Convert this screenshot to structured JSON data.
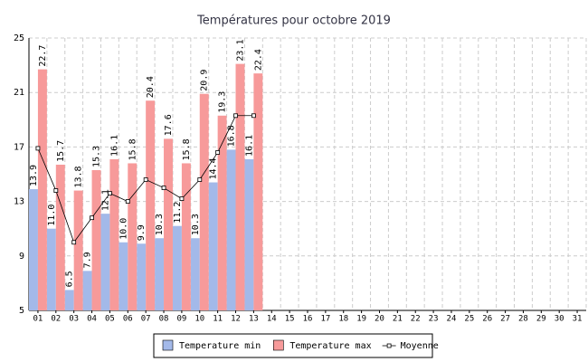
{
  "chart_data": {
    "type": "bar-line",
    "title": "Températures pour octobre 2019",
    "categories": [
      "01",
      "02",
      "03",
      "04",
      "05",
      "06",
      "07",
      "08",
      "09",
      "10",
      "11",
      "12",
      "13",
      "14",
      "15",
      "16",
      "17",
      "18",
      "19",
      "20",
      "21",
      "22",
      "23",
      "24",
      "25",
      "26",
      "27",
      "28",
      "29",
      "30",
      "31"
    ],
    "series": [
      {
        "name": "Temperature min",
        "type": "bar",
        "color": "#a3b9e9",
        "values": [
          13.9,
          11.0,
          6.5,
          7.9,
          12.1,
          10.0,
          9.9,
          10.3,
          11.2,
          10.3,
          14.4,
          16.8,
          16.1,
          null,
          null,
          null,
          null,
          null,
          null,
          null,
          null,
          null,
          null,
          null,
          null,
          null,
          null,
          null,
          null,
          null,
          null
        ],
        "value_labels": [
          "13.9",
          "11.0",
          "6.5",
          "7.9",
          "12.1",
          "10.0",
          "9.9",
          "10.3",
          "11.2",
          "10.3",
          "14.4",
          "16.8",
          "16.1",
          null,
          null,
          null,
          null,
          null,
          null,
          null,
          null,
          null,
          null,
          null,
          null,
          null,
          null,
          null,
          null,
          null,
          null
        ]
      },
      {
        "name": "Temperature max",
        "type": "bar",
        "color": "#f79a9a",
        "values": [
          22.7,
          15.7,
          13.8,
          15.3,
          16.1,
          15.8,
          20.4,
          17.6,
          15.8,
          20.9,
          19.3,
          23.1,
          22.4,
          null,
          null,
          null,
          null,
          null,
          null,
          null,
          null,
          null,
          null,
          null,
          null,
          null,
          null,
          null,
          null,
          null,
          null
        ],
        "value_labels": [
          "22.7",
          "15.7",
          "13.8",
          "15.3",
          "16.1",
          "15.8",
          "20.4",
          "17.6",
          "15.8",
          "20.9",
          "19.3",
          "23.1",
          "22.4",
          null,
          null,
          null,
          null,
          null,
          null,
          null,
          null,
          null,
          null,
          null,
          null,
          null,
          null,
          null,
          null,
          null,
          null
        ]
      },
      {
        "name": "Moyenne",
        "type": "line",
        "color": "#000000",
        "values": [
          16.9,
          13.8,
          10.0,
          11.8,
          13.6,
          13.0,
          14.6,
          14.0,
          13.2,
          14.6,
          16.6,
          19.3,
          19.3,
          null,
          null,
          null,
          null,
          null,
          null,
          null,
          null,
          null,
          null,
          null,
          null,
          null,
          null,
          null,
          null,
          null,
          null
        ]
      }
    ],
    "ylim": [
      5,
      25
    ],
    "yticks": [
      5,
      9,
      13,
      17,
      21,
      25
    ],
    "grid": true,
    "legend": "bottom"
  }
}
